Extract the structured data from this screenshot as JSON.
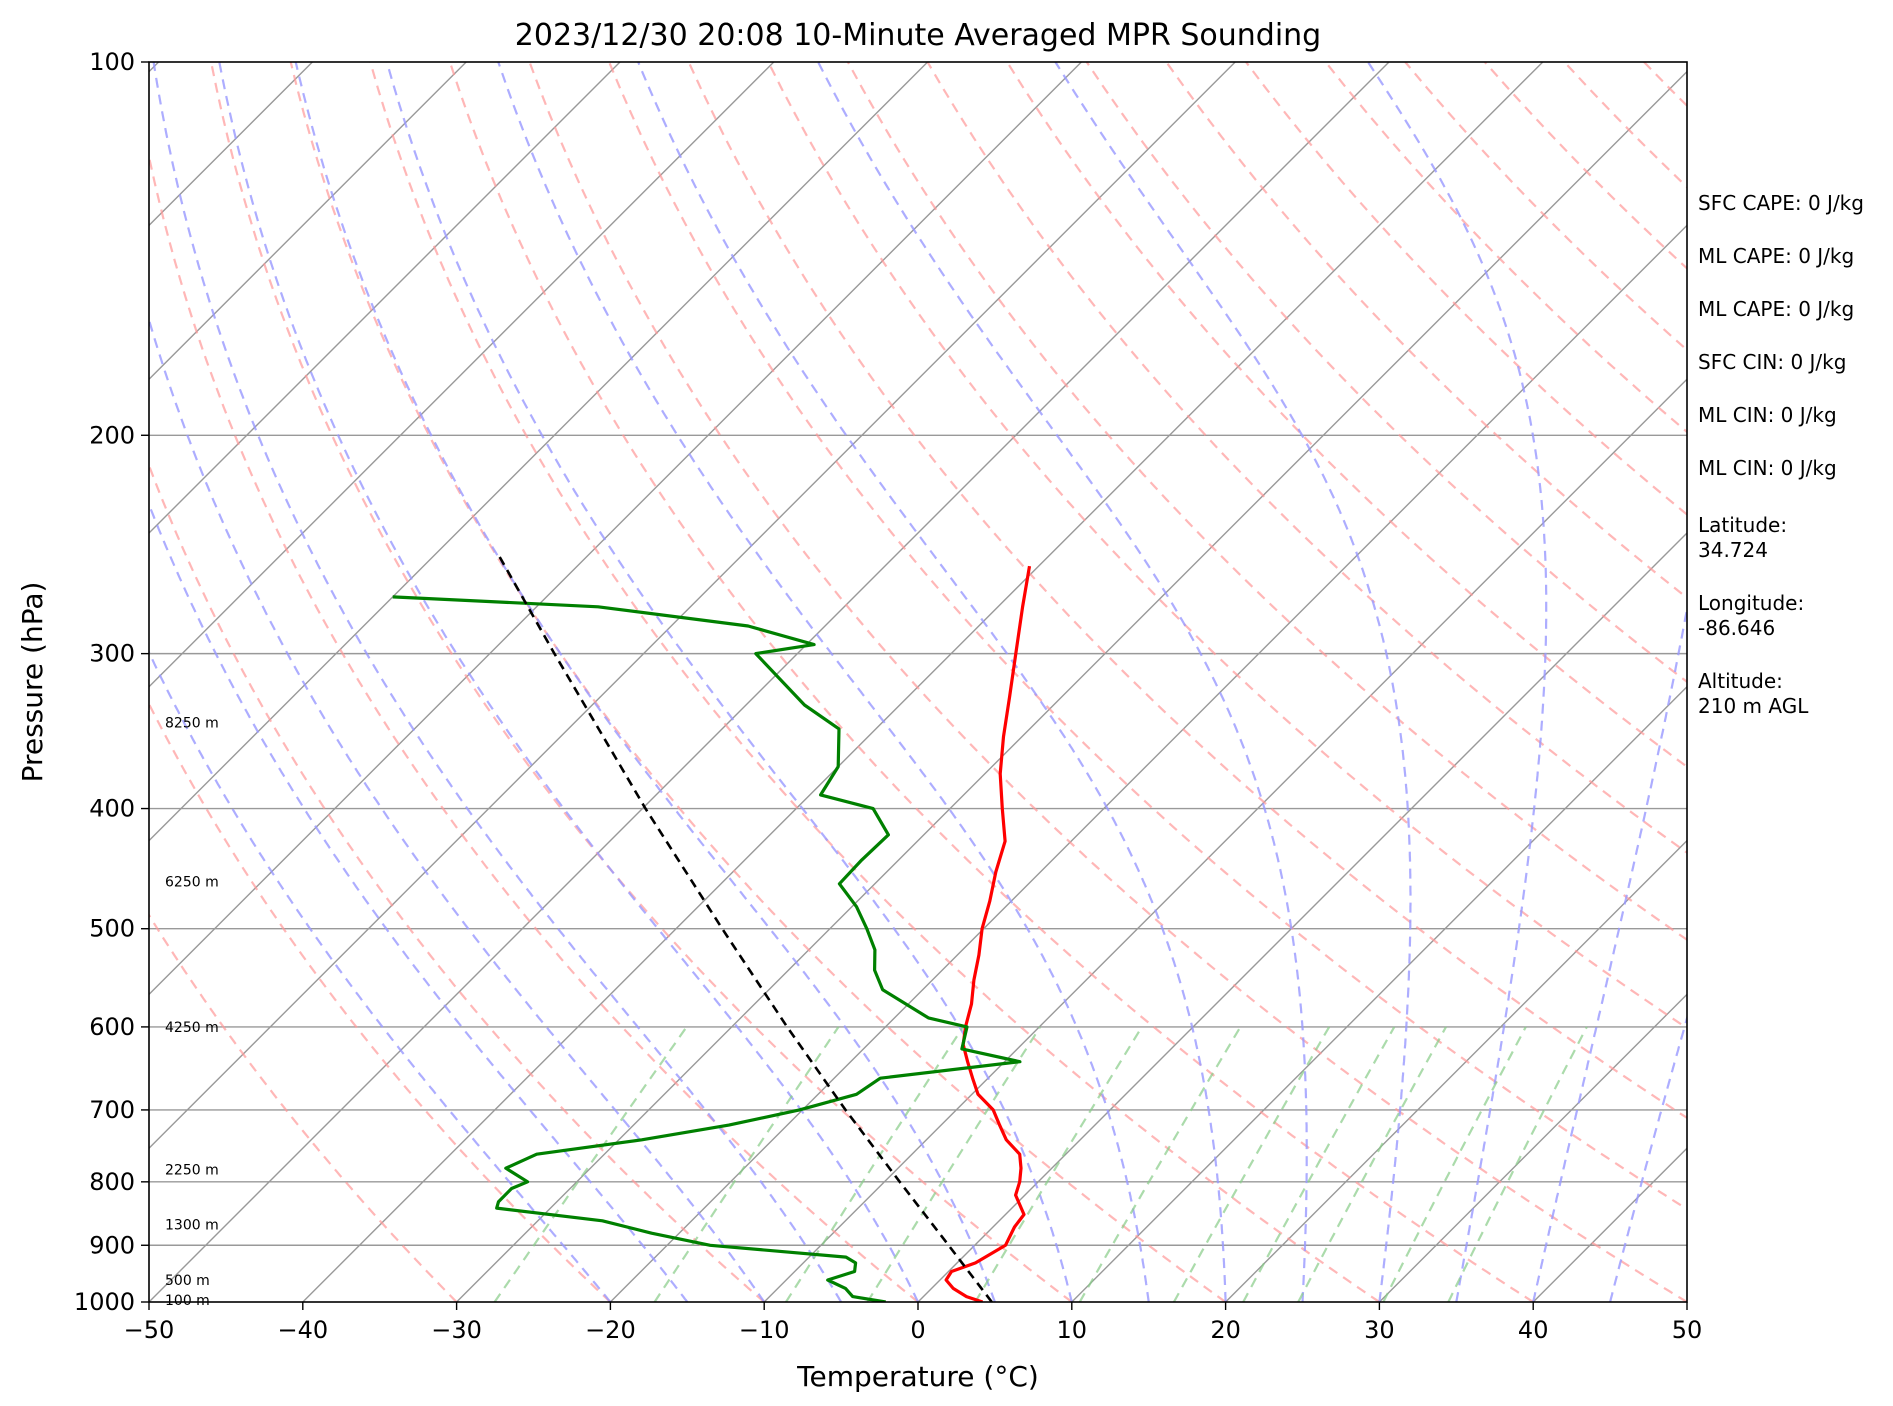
{
  "chart_data": {
    "type": "line",
    "title": "2023/12/30 20:08 10-Minute Averaged MPR Sounding",
    "xlabel": "Temperature (°C)",
    "ylabel": "Pressure (hPa)",
    "xlim": [
      -50,
      50
    ],
    "ylim": [
      1000,
      100
    ],
    "y_scale": "log",
    "skew_t": true,
    "grid": true,
    "x_ticks": [
      -50,
      -40,
      -30,
      -20,
      -10,
      0,
      10,
      20,
      30,
      40,
      50
    ],
    "x_tick_labels": [
      "−50",
      "−40",
      "−30",
      "−20",
      "−10",
      "0",
      "10",
      "20",
      "30",
      "40",
      "50"
    ],
    "y_ticks": [
      1000,
      900,
      800,
      700,
      600,
      500,
      400,
      300,
      200,
      100
    ],
    "y_tick_labels": [
      "1000",
      "900",
      "800",
      "700",
      "600",
      "500",
      "400",
      "300",
      "200",
      "100"
    ],
    "series": [
      {
        "color": "#ff0000",
        "points": [
          [
            1000,
            4.2
          ],
          [
            990,
            2.8
          ],
          [
            975,
            1.4
          ],
          [
            960,
            0.4
          ],
          [
            945,
            0.2
          ],
          [
            930,
            1.2
          ],
          [
            900,
            2.0
          ],
          [
            870,
            1.4
          ],
          [
            850,
            1.2
          ],
          [
            820,
            -0.6
          ],
          [
            800,
            -1.2
          ],
          [
            780,
            -2.0
          ],
          [
            760,
            -3.0
          ],
          [
            740,
            -4.8
          ],
          [
            720,
            -6.2
          ],
          [
            700,
            -7.6
          ],
          [
            680,
            -9.6
          ],
          [
            660,
            -11.0
          ],
          [
            640,
            -12.4
          ],
          [
            620,
            -13.8
          ],
          [
            600,
            -14.8
          ],
          [
            575,
            -15.9
          ],
          [
            550,
            -17.3
          ],
          [
            525,
            -18.6
          ],
          [
            500,
            -20.1
          ],
          [
            475,
            -21.4
          ],
          [
            450,
            -22.9
          ],
          [
            425,
            -24.3
          ],
          [
            400,
            -26.6
          ],
          [
            375,
            -29.0
          ],
          [
            350,
            -31.2
          ],
          [
            325,
            -33.4
          ],
          [
            300,
            -35.8
          ],
          [
            275,
            -38.4
          ],
          [
            255,
            -40.6
          ]
        ]
      },
      {
        "color": "#008000",
        "points": [
          [
            1000,
            -2.1
          ],
          [
            990,
            -4.6
          ],
          [
            975,
            -5.6
          ],
          [
            960,
            -7.3
          ],
          [
            945,
            -6.1
          ],
          [
            930,
            -6.6
          ],
          [
            920,
            -7.6
          ],
          [
            900,
            -17.2
          ],
          [
            880,
            -21.8
          ],
          [
            860,
            -25.8
          ],
          [
            840,
            -33.5
          ],
          [
            830,
            -33.8
          ],
          [
            810,
            -33.8
          ],
          [
            800,
            -33.2
          ],
          [
            780,
            -35.5
          ],
          [
            760,
            -34.4
          ],
          [
            740,
            -28.5
          ],
          [
            720,
            -23.8
          ],
          [
            700,
            -20.2
          ],
          [
            680,
            -17.5
          ],
          [
            660,
            -17.0
          ],
          [
            640,
            -9.0
          ],
          [
            625,
            -13.6
          ],
          [
            600,
            -14.7
          ],
          [
            590,
            -17.8
          ],
          [
            560,
            -22.6
          ],
          [
            540,
            -24.4
          ],
          [
            520,
            -25.7
          ],
          [
            500,
            -27.6
          ],
          [
            480,
            -29.7
          ],
          [
            460,
            -32.3
          ],
          [
            440,
            -32.4
          ],
          [
            420,
            -32.3
          ],
          [
            400,
            -35.0
          ],
          [
            390,
            -39.3
          ],
          [
            370,
            -40.0
          ],
          [
            345,
            -42.4
          ],
          [
            330,
            -46.2
          ],
          [
            300,
            -52.7
          ],
          [
            295,
            -49.5
          ],
          [
            285,
            -55.0
          ],
          [
            275,
            -66.0
          ],
          [
            270,
            -80.0
          ]
        ]
      },
      {
        "color": "#000000",
        "style": "dashed",
        "points": [
          [
            1000,
            4.8
          ],
          [
            900,
            -1.7
          ],
          [
            800,
            -9.0
          ],
          [
            700,
            -17.2
          ],
          [
            600,
            -26.4
          ],
          [
            500,
            -37.0
          ],
          [
            400,
            -49.8
          ],
          [
            300,
            -65.8
          ],
          [
            250,
            -75.8
          ]
        ]
      }
    ],
    "height_labels": [
      {
        "pressure": 996,
        "text": "100 m"
      },
      {
        "pressure": 960,
        "text": "500 m"
      },
      {
        "pressure": 866,
        "text": "1300 m"
      },
      {
        "pressure": 782,
        "text": "2250 m"
      },
      {
        "pressure": 600,
        "text": "4250 m"
      },
      {
        "pressure": 458,
        "text": "6250 m"
      },
      {
        "pressure": 341,
        "text": "8250 m"
      }
    ],
    "annotations": [
      "SFC CAPE: 0 J/kg",
      "ML CAPE: 0 J/kg",
      "ML CAPE: 0 J/kg",
      "SFC CIN: 0 J/kg",
      "ML CIN: 0 J/kg",
      "ML CIN: 0 J/kg",
      "Latitude:",
      "34.724",
      "Longitude:",
      "-86.646",
      "Altitude:",
      "210 m AGL"
    ],
    "colors": {
      "dry_adiabat": "#ff9999",
      "moist_adiabat": "#9999ff",
      "mixing_ratio": "#88cc88",
      "isotherm": "#999999"
    }
  }
}
